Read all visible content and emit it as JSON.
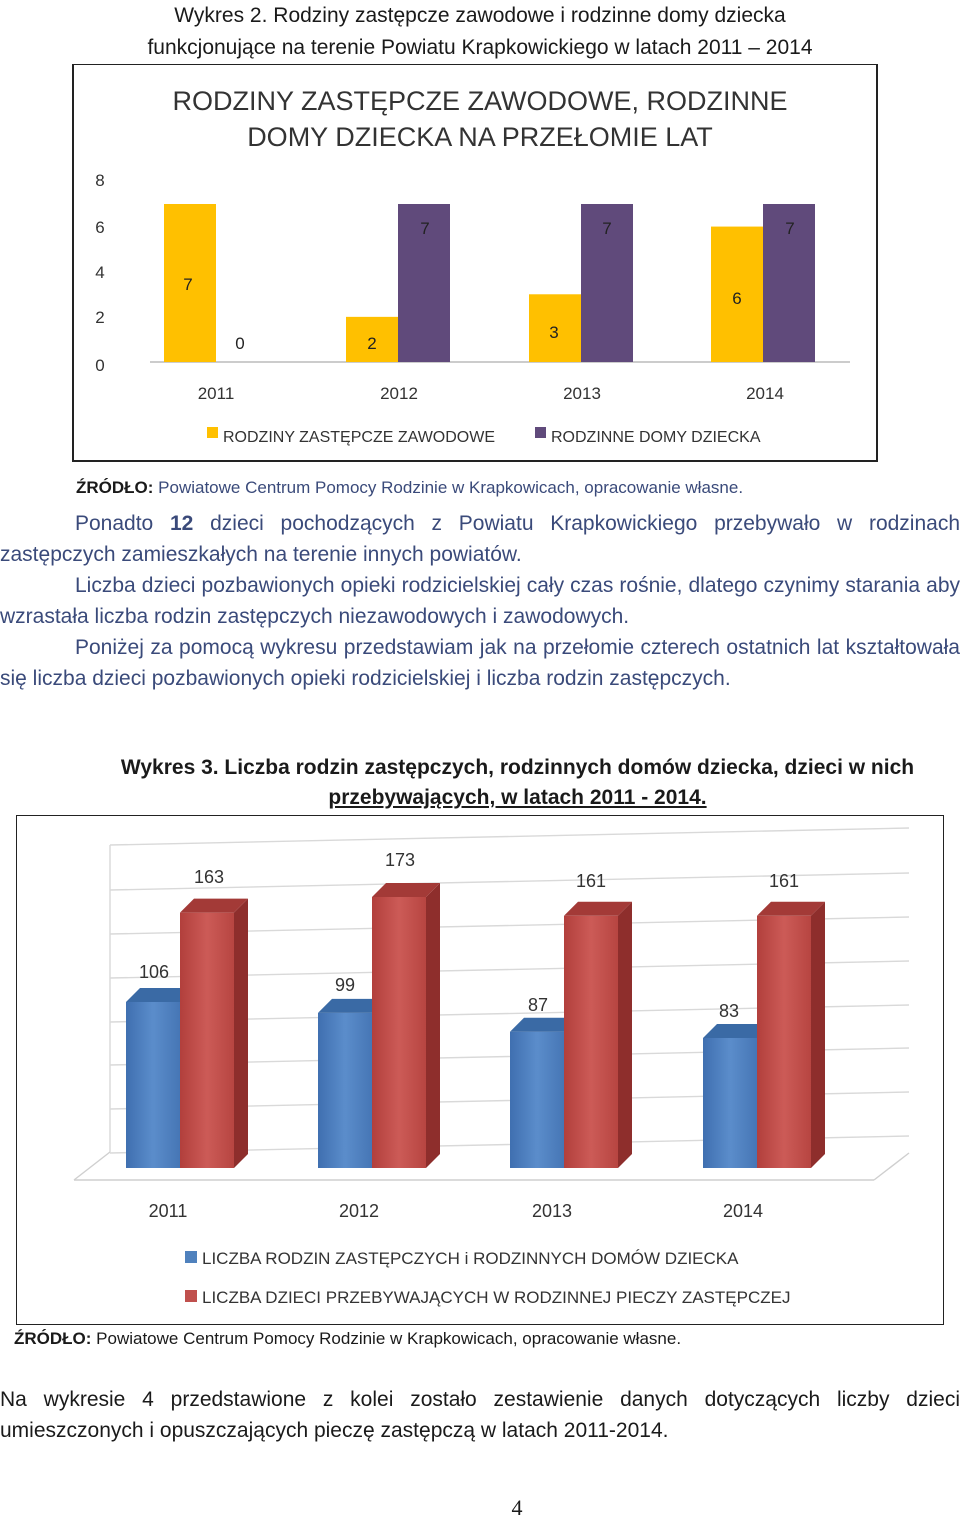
{
  "chart2": {
    "heading_line1": "Wykres 2. Rodziny zastępcze zawodowe i rodzinne domy dziecka",
    "heading_line2": "funkcjonujące na terenie Powiatu Krapkowickiego w latach 2011 – 2014",
    "source_label": "ŹRÓDŁO:",
    "source_text": " Powiatowe Centrum Pomocy Rodzinie w Krapkowicach, opracowanie własne."
  },
  "paragraph1": {
    "before": "Ponadto ",
    "bold": "12",
    "after": " dzieci pochodzących z Powiatu Krapkowickiego przebywało w rodzinach zastępczych zamieszkałych na terenie innych powiatów."
  },
  "paragraph2": "Liczba dzieci pozbawionych opieki rodzicielskiej cały czas rośnie, dlatego czynimy starania aby wzrastała liczba rodzin zastępczych niezawodowych i zawodowych.",
  "paragraph3": "Poniżej za pomocą wykresu przedstawiam jak na przełomie czterech ostatnich lat kształtowała się  liczba dzieci pozbawionych opieki rodzicielskiej i liczba rodzin zastępczych.",
  "chart3": {
    "heading_line1": "Wykres 3. Liczba rodzin zastępczych, rodzinnych domów dziecka, dzieci w nich",
    "heading_line2": "przebywających, w latach 2011 - 2014.",
    "source_label": "ŹRÓDŁO:",
    "source_text": " Powiatowe Centrum Pomocy Rodzinie w Krapkowicach, opracowanie własne."
  },
  "paragraph4": "Na wykresie  4 przedstawione z kolei zostało zestawienie danych dotyczących liczby dzieci umieszczonych i opuszczających pieczę zastępczą w latach 2011-2014.",
  "page_number": "4",
  "chart_data": [
    {
      "type": "bar",
      "title": "RODZINY ZASTĘPCZE ZAWODOWE, RODZINNE DOMY DZIECKA NA PRZEŁOMIE LAT",
      "title_lines": [
        "RODZINY ZASTĘPCZE ZAWODOWE, RODZINNE",
        "DOMY DZIECKA NA PRZEŁOMIE LAT"
      ],
      "categories": [
        "2011",
        "2012",
        "2013",
        "2014"
      ],
      "y_ticks": [
        "8",
        "6",
        "4",
        "2",
        "0"
      ],
      "ylim": [
        0,
        8
      ],
      "legend_position": "bottom",
      "series": [
        {
          "name": "RODZINY ZASTĘPCZE ZAWODOWE",
          "values": [
            7,
            2,
            3,
            6
          ],
          "labels": [
            "7",
            "2",
            "3",
            "6"
          ],
          "color": "#ffc000"
        },
        {
          "name": "RODZINNE DOMY DZIECKA",
          "values": [
            0,
            7,
            7,
            7
          ],
          "labels": [
            "0",
            "7",
            "7",
            "7"
          ],
          "color": "#604a7b"
        }
      ]
    },
    {
      "type": "bar",
      "style": "3d",
      "categories": [
        "2011",
        "2012",
        "2013",
        "2014"
      ],
      "legend_position": "bottom",
      "series": [
        {
          "name": "LICZBA RODZIN ZASTĘPCZYCH i RODZINNYCH DOMÓW DZIECKA",
          "values": [
            106,
            99,
            87,
            83
          ],
          "labels": [
            "106",
            "99",
            "87",
            "83"
          ],
          "color": "#4f81bd"
        },
        {
          "name": "LICZBA DZIECI PRZEBYWAJĄCYCH W RODZINNEJ PIECZY ZASTĘPCZEJ",
          "values": [
            163,
            173,
            161,
            161
          ],
          "labels": [
            "163",
            "173",
            "161",
            "161"
          ],
          "color": "#c0504d"
        }
      ]
    }
  ]
}
